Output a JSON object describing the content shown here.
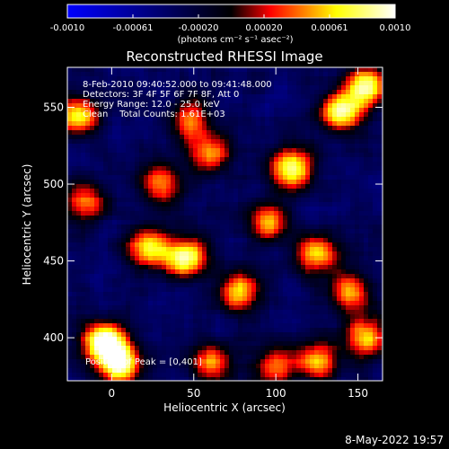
{
  "chart_data": {
    "type": "heatmap",
    "title": "Reconstructed RHESSI Image",
    "xlabel": "Heliocentric X (arcsec)",
    "ylabel": "Heliocentric Y (arcsec)",
    "xlim": [
      -27,
      165
    ],
    "ylim": [
      372,
      576
    ],
    "xticks": [
      0,
      50,
      100,
      150
    ],
    "yticks": [
      400,
      450,
      500,
      550
    ],
    "colorbar": {
      "ticks": [
        "-0.0010",
        "-0.00061",
        "-0.00020",
        "0.00020",
        "0.00061",
        "0.0010"
      ],
      "label": "(photons cm⁻² s⁻¹ asec⁻²)",
      "range": [
        -0.001,
        0.001
      ],
      "colormap": [
        "#0000ff",
        "#000000",
        "#ff0000",
        "#ffff00",
        "#ffffff"
      ]
    },
    "annotations": [
      "8-Feb-2010 09:40:52.000 to 09:41:48.000",
      "Detectors: 3F 4F 5F 6F 7F 8F, Att 0",
      "Energy Range: 12.0 - 25.0 keV",
      "Clean    Total Counts: 1.61E+03"
    ],
    "peak_note": "Position of Peak = [0,401]",
    "peak": [
      0,
      401
    ],
    "bright_sources": [
      {
        "x": -5,
        "y": 398,
        "intensity": 0.001
      },
      {
        "x": 5,
        "y": 383,
        "intensity": 0.00098
      },
      {
        "x": -20,
        "y": 545,
        "intensity": 0.00055
      },
      {
        "x": 48,
        "y": 542,
        "intensity": 0.00045
      },
      {
        "x": 140,
        "y": 548,
        "intensity": 0.00085
      },
      {
        "x": 155,
        "y": 565,
        "intensity": 0.0008
      },
      {
        "x": 110,
        "y": 510,
        "intensity": 0.00078
      },
      {
        "x": 45,
        "y": 452,
        "intensity": 0.00085
      },
      {
        "x": 22,
        "y": 458,
        "intensity": 0.00065
      },
      {
        "x": 78,
        "y": 430,
        "intensity": 0.00062
      },
      {
        "x": 125,
        "y": 455,
        "intensity": 0.0006
      },
      {
        "x": 145,
        "y": 430,
        "intensity": 0.0005
      },
      {
        "x": 155,
        "y": 400,
        "intensity": 0.0006
      },
      {
        "x": 95,
        "y": 475,
        "intensity": 0.0005
      },
      {
        "x": 60,
        "y": 520,
        "intensity": 0.00045
      },
      {
        "x": 125,
        "y": 385,
        "intensity": 0.0005
      },
      {
        "x": 100,
        "y": 382,
        "intensity": 0.00045
      },
      {
        "x": 60,
        "y": 385,
        "intensity": 0.0004
      },
      {
        "x": 30,
        "y": 500,
        "intensity": 0.0004
      },
      {
        "x": -15,
        "y": 488,
        "intensity": 0.0004
      }
    ]
  },
  "footer": {
    "date": "8-May-2022 19:57"
  }
}
